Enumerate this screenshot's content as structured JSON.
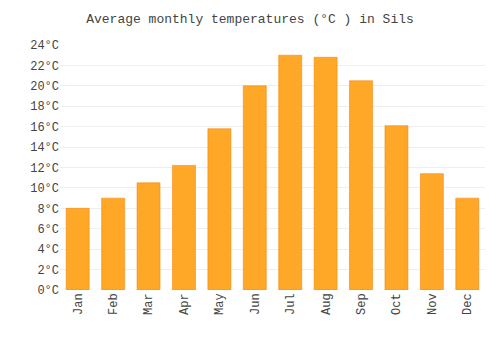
{
  "chart_data": {
    "type": "bar",
    "title": "Average monthly temperatures (°C ) in Sils",
    "categories": [
      "Jan",
      "Feb",
      "Mar",
      "Apr",
      "May",
      "Jun",
      "Jul",
      "Aug",
      "Sep",
      "Oct",
      "Nov",
      "Dec"
    ],
    "values": [
      8.0,
      9.0,
      10.5,
      12.2,
      15.8,
      20.0,
      23.0,
      22.8,
      20.5,
      16.1,
      11.4,
      9.0
    ],
    "color": "#FFA726",
    "ylim": [
      0,
      24
    ],
    "yticks": [
      {
        "value": 0,
        "label": "0°C"
      },
      {
        "value": 2,
        "label": "2°C"
      },
      {
        "value": 4,
        "label": "4°C"
      },
      {
        "value": 6,
        "label": "6°C"
      },
      {
        "value": 8,
        "label": "8°C"
      },
      {
        "value": 10,
        "label": "10°C"
      },
      {
        "value": 12,
        "label": "12°C"
      },
      {
        "value": 14,
        "label": "14°C"
      },
      {
        "value": 16,
        "label": "16°C"
      },
      {
        "value": 18,
        "label": "18°C"
      },
      {
        "value": 20,
        "label": "20°C"
      },
      {
        "value": 22,
        "label": "22°C"
      },
      {
        "value": 24,
        "label": "24°C"
      }
    ],
    "grid": true
  }
}
